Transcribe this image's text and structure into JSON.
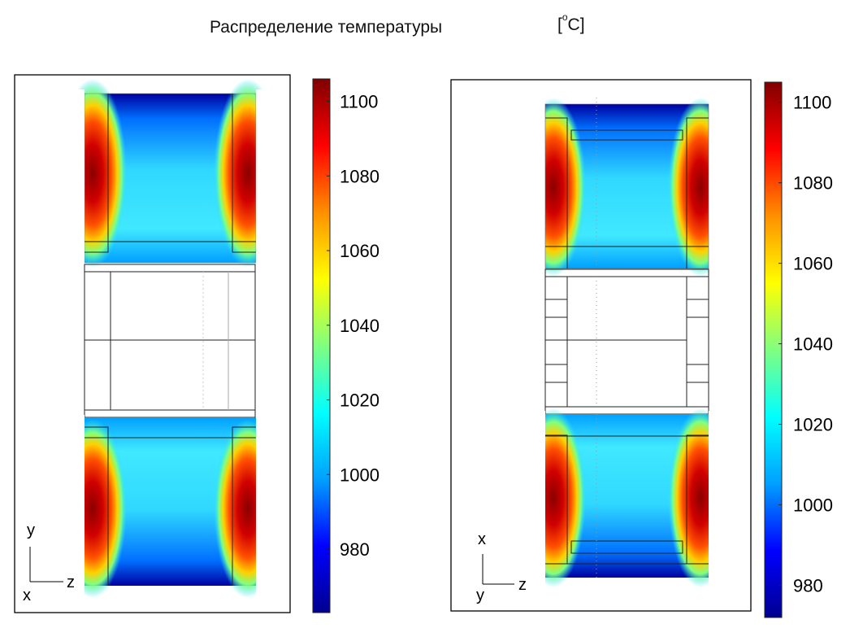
{
  "title": "Распределение температуры",
  "unit": {
    "open": "[",
    "degree": "o",
    "letter": "C",
    "close": "]"
  },
  "colormap": [
    "#00008f",
    "#0000ff",
    "#00a0ff",
    "#00ffff",
    "#80ff80",
    "#ffff00",
    "#ff9000",
    "#ff0000",
    "#800000"
  ],
  "chart_data": [
    {
      "type": "heatmap",
      "view": "left",
      "axis_triad": {
        "vertical": "y",
        "horizontal": "z",
        "depth": "x"
      },
      "colorbar": {
        "min": 963,
        "max": 1106,
        "ticks": [
          980,
          1000,
          1020,
          1040,
          1060,
          1080,
          1100
        ]
      }
    },
    {
      "type": "heatmap",
      "view": "right",
      "axis_triad": {
        "vertical": "x",
        "horizontal": "z",
        "depth": "y"
      },
      "colorbar": {
        "min": 972,
        "max": 1105,
        "ticks": [
          980,
          1000,
          1020,
          1040,
          1060,
          1080,
          1100
        ]
      }
    }
  ]
}
